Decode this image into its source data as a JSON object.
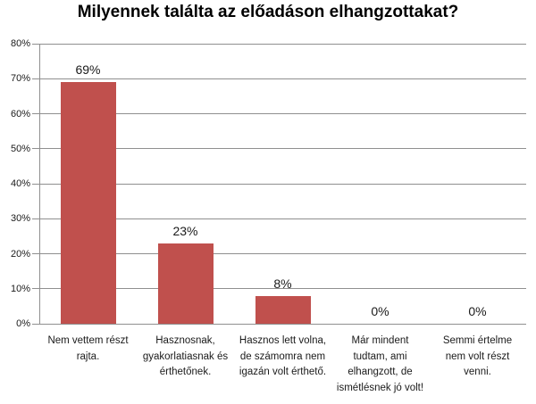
{
  "chart_data": {
    "type": "bar",
    "title": "Milyennek találta az előadáson elhangzottakat?",
    "categories": [
      "Nem vettem részt\nrajta.",
      "Hasznosnak,\ngyakorlatiasnak és\nérthetőnek.",
      "Hasznos lett volna,\nde számomra nem\nigazán volt érthető.",
      "Már mindent\ntudtam, ami\nelhangzott, de\nismétlésnek jó volt!",
      "Semmi értelme\nnem volt részt\nvenni."
    ],
    "values": [
      69,
      23,
      8,
      0,
      0
    ],
    "value_labels": [
      "69%",
      "23%",
      "8%",
      "0%",
      "0%"
    ],
    "unit": "%",
    "xlabel": "",
    "ylabel": "",
    "ylim": [
      0,
      80
    ],
    "y_tick_step": 10,
    "y_ticks": [
      "0%",
      "10%",
      "20%",
      "30%",
      "40%",
      "50%",
      "60%",
      "70%",
      "80%"
    ],
    "grid": "horizontal",
    "legend": "none",
    "colors": {
      "bar": "#C0504D",
      "gridline": "#8F8F8F",
      "axis": "#8F8F8F",
      "text": "#1A1A1A",
      "title": "#000000",
      "background": "#FFFFFF"
    }
  }
}
